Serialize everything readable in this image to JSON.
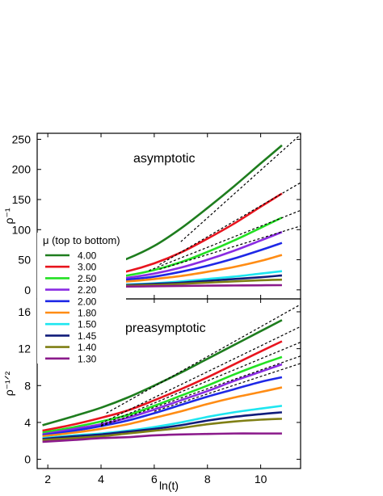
{
  "chart_data": [
    {
      "type": "line",
      "annotation": "asymptotic",
      "ylabel": "ρ⁻¹",
      "xlim": [
        1.6,
        11.5
      ],
      "ylim": [
        -15,
        260
      ],
      "yticks": [
        0,
        50,
        100,
        150,
        200,
        250
      ],
      "legend": {
        "title": "μ (top to bottom)",
        "placement": "left"
      },
      "series": [
        {
          "name": "4.00",
          "color": "#1e7d1e",
          "x": [
            1.8,
            3,
            4,
            5,
            6,
            7,
            8,
            9,
            10,
            10.8
          ],
          "y": [
            22,
            28,
            37,
            52,
            73,
            102,
            136,
            172,
            210,
            240
          ]
        },
        {
          "name": "3.00",
          "color": "#e8141e",
          "x": [
            1.8,
            3,
            4,
            5,
            6,
            7,
            8,
            9,
            10,
            10.8
          ],
          "y": [
            13,
            17,
            23,
            31,
            44,
            62,
            85,
            110,
            138,
            160
          ]
        },
        {
          "name": "2.50",
          "color": "#22e022",
          "x": [
            1.8,
            3,
            4,
            5,
            6,
            7,
            8,
            9,
            10,
            10.8
          ],
          "y": [
            11,
            14,
            18,
            24,
            33,
            46,
            63,
            82,
            103,
            120
          ]
        },
        {
          "name": "2.20",
          "color": "#8a2be2",
          "x": [
            1.8,
            3,
            4,
            5,
            6,
            7,
            8,
            9,
            10,
            10.8
          ],
          "y": [
            10,
            12,
            15,
            20,
            27,
            37,
            50,
            65,
            82,
            96
          ]
        },
        {
          "name": "2.00",
          "color": "#1e28e6",
          "x": [
            1.8,
            3,
            4,
            5,
            6,
            7,
            8,
            9,
            10,
            10.8
          ],
          "y": [
            9,
            11,
            13,
            17,
            22,
            30,
            40,
            52,
            66,
            78
          ]
        },
        {
          "name": "1.80",
          "color": "#ff8c14",
          "x": [
            1.8,
            3,
            4,
            5,
            6,
            7,
            8,
            9,
            10,
            10.8
          ],
          "y": [
            8,
            9,
            11,
            14,
            18,
            23,
            30,
            38,
            48,
            58
          ]
        },
        {
          "name": "1.50",
          "color": "#1ee6f0",
          "x": [
            1.8,
            3,
            4,
            5,
            6,
            7,
            8,
            9,
            10,
            10.8
          ],
          "y": [
            5,
            6,
            7,
            9,
            11,
            14,
            18,
            22,
            27,
            31
          ]
        },
        {
          "name": "1.45",
          "color": "#101c7a",
          "x": [
            1.8,
            3,
            4,
            5,
            6,
            7,
            8,
            9,
            10,
            10.8
          ],
          "y": [
            4,
            5,
            6,
            8,
            10,
            12,
            15,
            18,
            21,
            24
          ]
        },
        {
          "name": "1.40",
          "color": "#7f7f14",
          "x": [
            1.8,
            3,
            4,
            5,
            6,
            7,
            8,
            9,
            10,
            10.8
          ],
          "y": [
            4,
            5,
            6,
            7,
            8,
            10,
            12,
            14,
            16,
            17
          ]
        },
        {
          "name": "1.30",
          "color": "#8b1a8b",
          "x": [
            1.8,
            3,
            4,
            5,
            6,
            7,
            8,
            9,
            10,
            10.8
          ],
          "y": [
            4,
            4.5,
            5,
            5.5,
            6,
            6.5,
            7,
            7.3,
            7.6,
            7.8
          ]
        }
      ],
      "fits": [
        {
          "x": [
            7,
            11.5
          ],
          "y": [
            80,
            258
          ]
        },
        {
          "x": [
            6.2,
            11.5
          ],
          "y": [
            42,
            178
          ]
        },
        {
          "x": [
            5.8,
            11.5
          ],
          "y": [
            32,
            132
          ]
        },
        {
          "x": [
            6.2,
            11.5
          ],
          "y": [
            34,
            106
          ]
        }
      ]
    },
    {
      "type": "line",
      "annotation": "preasymptotic",
      "xlabel": "ln(t)",
      "ylabel": "ρ⁻¹ᐟ²",
      "xlim": [
        1.6,
        11.5
      ],
      "ylim": [
        -1,
        17.4
      ],
      "xticks": [
        2,
        4,
        6,
        8,
        10
      ],
      "yticks": [
        0,
        4,
        8,
        12,
        16
      ],
      "series": [
        {
          "name": "4.00",
          "color": "#1e7d1e",
          "x": [
            1.8,
            3,
            4,
            5,
            6,
            7,
            8,
            9,
            10,
            10.8
          ],
          "y": [
            3.7,
            4.7,
            5.6,
            6.7,
            8.0,
            9.4,
            10.9,
            12.4,
            13.9,
            15.1
          ]
        },
        {
          "name": "3.00",
          "color": "#e8141e",
          "x": [
            1.8,
            3,
            4,
            5,
            6,
            7,
            8,
            9,
            10,
            10.8
          ],
          "y": [
            3.1,
            3.8,
            4.5,
            5.3,
            6.4,
            7.6,
            8.9,
            10.3,
            11.7,
            12.8
          ]
        },
        {
          "name": "2.50",
          "color": "#22e022",
          "x": [
            1.8,
            3,
            4,
            5,
            6,
            7,
            8,
            9,
            10,
            10.8
          ],
          "y": [
            2.9,
            3.5,
            4.1,
            4.8,
            5.8,
            6.9,
            8.0,
            9.2,
            10.3,
            11.1
          ]
        },
        {
          "name": "2.20",
          "color": "#8a2be2",
          "x": [
            1.8,
            3,
            4,
            5,
            6,
            7,
            8,
            9,
            10,
            10.8
          ],
          "y": [
            2.7,
            3.3,
            3.8,
            4.5,
            5.4,
            6.4,
            7.4,
            8.5,
            9.5,
            10.3
          ]
        },
        {
          "name": "2.00",
          "color": "#1e28e6",
          "x": [
            1.8,
            3,
            4,
            5,
            6,
            7,
            8,
            9,
            10,
            10.8
          ],
          "y": [
            2.6,
            3.1,
            3.6,
            4.2,
            5.0,
            5.9,
            6.8,
            7.6,
            8.4,
            8.9
          ]
        },
        {
          "name": "1.80",
          "color": "#ff8c14",
          "x": [
            1.8,
            3,
            4,
            5,
            6,
            7,
            8,
            9,
            10,
            10.8
          ],
          "y": [
            2.5,
            2.9,
            3.3,
            3.8,
            4.5,
            5.2,
            6.0,
            6.7,
            7.3,
            7.8
          ]
        },
        {
          "name": "1.50",
          "color": "#1ee6f0",
          "x": [
            1.8,
            3,
            4,
            5,
            6,
            7,
            8,
            9,
            10,
            10.8
          ],
          "y": [
            2.3,
            2.6,
            2.8,
            3.1,
            3.5,
            4.0,
            4.6,
            5.1,
            5.5,
            5.8
          ]
        },
        {
          "name": "1.45",
          "color": "#101c7a",
          "x": [
            1.8,
            3,
            4,
            5,
            6,
            7,
            8,
            9,
            10,
            10.8
          ],
          "y": [
            2.2,
            2.5,
            2.7,
            3.0,
            3.3,
            3.7,
            4.2,
            4.6,
            4.9,
            5.1
          ]
        },
        {
          "name": "1.40",
          "color": "#7f7f14",
          "x": [
            1.8,
            3,
            4,
            5,
            6,
            7,
            8,
            9,
            10,
            10.8
          ],
          "y": [
            2.1,
            2.3,
            2.5,
            2.8,
            3.1,
            3.4,
            3.8,
            4.1,
            4.3,
            4.4
          ]
        },
        {
          "name": "1.30",
          "color": "#8b1a8b",
          "x": [
            1.8,
            3,
            4,
            5,
            6,
            7,
            8,
            9,
            10,
            10.8
          ],
          "y": [
            1.9,
            2.1,
            2.3,
            2.4,
            2.6,
            2.7,
            2.75,
            2.8,
            2.8,
            2.8
          ]
        }
      ],
      "fits": [
        {
          "x": [
            4.2,
            11.5
          ],
          "y": [
            5.0,
            16.8
          ]
        },
        {
          "x": [
            4.0,
            11.5
          ],
          "y": [
            3.9,
            14.4
          ]
        },
        {
          "x": [
            4.0,
            11.5
          ],
          "y": [
            3.7,
            12.7
          ]
        },
        {
          "x": [
            4.0,
            11.5
          ],
          "y": [
            3.6,
            11.2
          ]
        },
        {
          "x": [
            6.0,
            11.5
          ],
          "y": [
            5.2,
            10.4
          ]
        }
      ]
    }
  ]
}
